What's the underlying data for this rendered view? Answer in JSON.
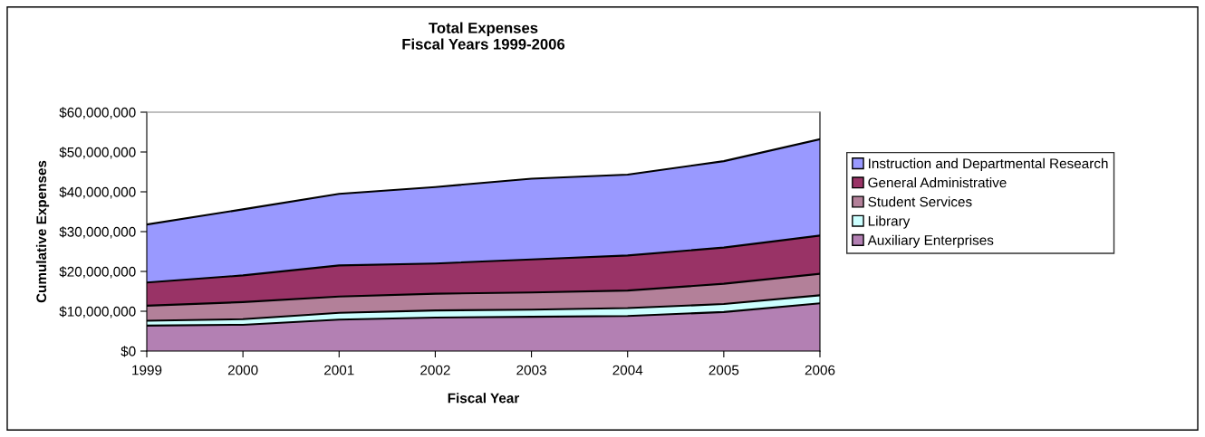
{
  "chart_data": {
    "type": "area",
    "title": "Total Expenses\nFiscal Years 1999-2006",
    "xlabel": "Fiscal Year",
    "ylabel": "Cumulative Expenses",
    "categories": [
      "1999",
      "2000",
      "2001",
      "2002",
      "2003",
      "2004",
      "2005",
      "2006"
    ],
    "stacked": true,
    "series": [
      {
        "name": "Auxiliary Enterprises",
        "color": "#b380b3",
        "values": [
          6400000,
          6600000,
          7900000,
          8400000,
          8600000,
          8800000,
          9800000,
          12000000
        ]
      },
      {
        "name": "Library",
        "color": "#ccffff",
        "values": [
          1200000,
          1400000,
          1700000,
          1800000,
          1800000,
          2000000,
          2000000,
          2000000
        ]
      },
      {
        "name": "Student Services",
        "color": "#b38099",
        "values": [
          3800000,
          4300000,
          4100000,
          4200000,
          4300000,
          4400000,
          5100000,
          5400000
        ]
      },
      {
        "name": "General Administrative",
        "color": "#993366",
        "values": [
          5800000,
          6700000,
          7800000,
          7600000,
          8300000,
          8800000,
          9100000,
          9600000
        ]
      },
      {
        "name": "Instruction and Departmental Research",
        "color": "#9999ff",
        "values": [
          14600000,
          16600000,
          18000000,
          19200000,
          20300000,
          20300000,
          21700000,
          24200000
        ]
      }
    ],
    "ylim": [
      0,
      60000000
    ],
    "yticks": [
      {
        "value": 0,
        "label": "$0"
      },
      {
        "value": 10000000,
        "label": "$10,000,000"
      },
      {
        "value": 20000000,
        "label": "$20,000,000"
      },
      {
        "value": 30000000,
        "label": "$30,000,000"
      },
      {
        "value": 40000000,
        "label": "$40,000,000"
      },
      {
        "value": 50000000,
        "label": "$50,000,000"
      },
      {
        "value": 60000000,
        "label": "$60,000,000"
      }
    ],
    "legend": "right"
  }
}
